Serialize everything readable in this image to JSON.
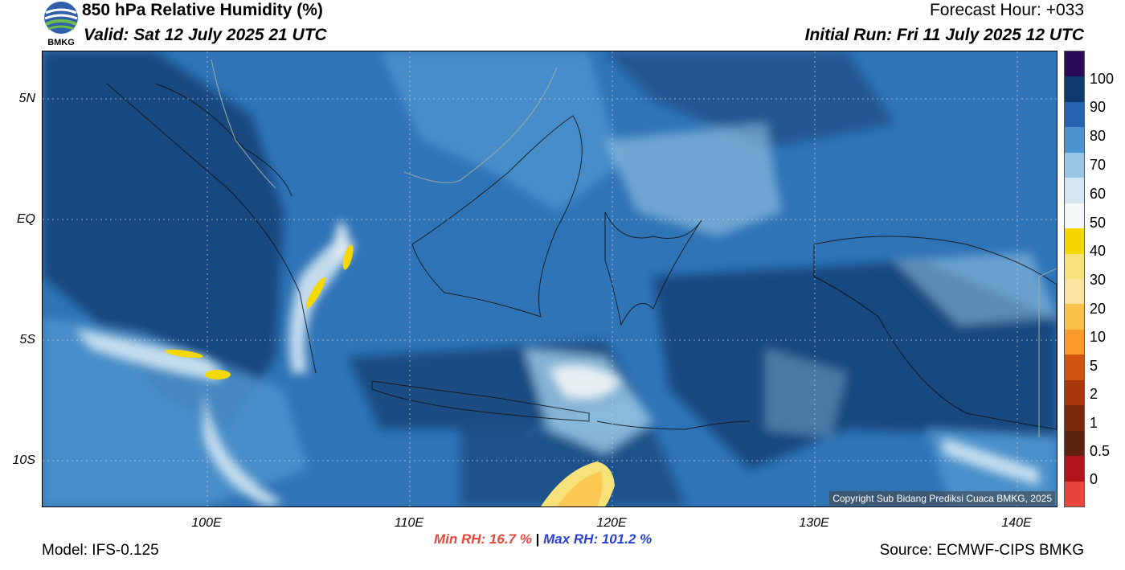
{
  "header": {
    "title": "850 hPa Relative Humidity (%)",
    "valid": "Valid: Sat 12 July 2025 21 UTC",
    "forecast_hour": "Forecast Hour: +033",
    "initial_run": "Initial Run: Fri 11 July 2025 12 UTC",
    "logo_text": "BMKG"
  },
  "map": {
    "lat_labels": [
      "5N",
      "EQ",
      "5S",
      "10S"
    ],
    "lon_labels": [
      "100E",
      "110E",
      "120E",
      "130E",
      "140E"
    ],
    "copyright": "Copyright Sub Bidang Prediksi Cuaca BMKG, 2025"
  },
  "colorbar": {
    "labels": [
      "100",
      "90",
      "80",
      "70",
      "60",
      "50",
      "40",
      "30",
      "20",
      "10",
      "5",
      "2",
      "1",
      "0.5",
      "0"
    ],
    "colors": [
      "#2c0a55",
      "#0e3a6c",
      "#2563b0",
      "#4d93ce",
      "#99c6e4",
      "#d4e7f3",
      "#f4f7f8",
      "#f5d800",
      "#f7e27a",
      "#fde3a0",
      "#fbc24b",
      "#f99a2a",
      "#d0530f",
      "#a8380c",
      "#7a2a0b",
      "#5e2310",
      "#b0151b",
      "#e8453c"
    ]
  },
  "stats": {
    "min": "Min RH:  16.7 %",
    "separator": "|",
    "max": "Max RH: 101.2 %"
  },
  "footer": {
    "model": "Model: IFS-0.125",
    "source": "Source: ECMWF-CIPS BMKG"
  }
}
